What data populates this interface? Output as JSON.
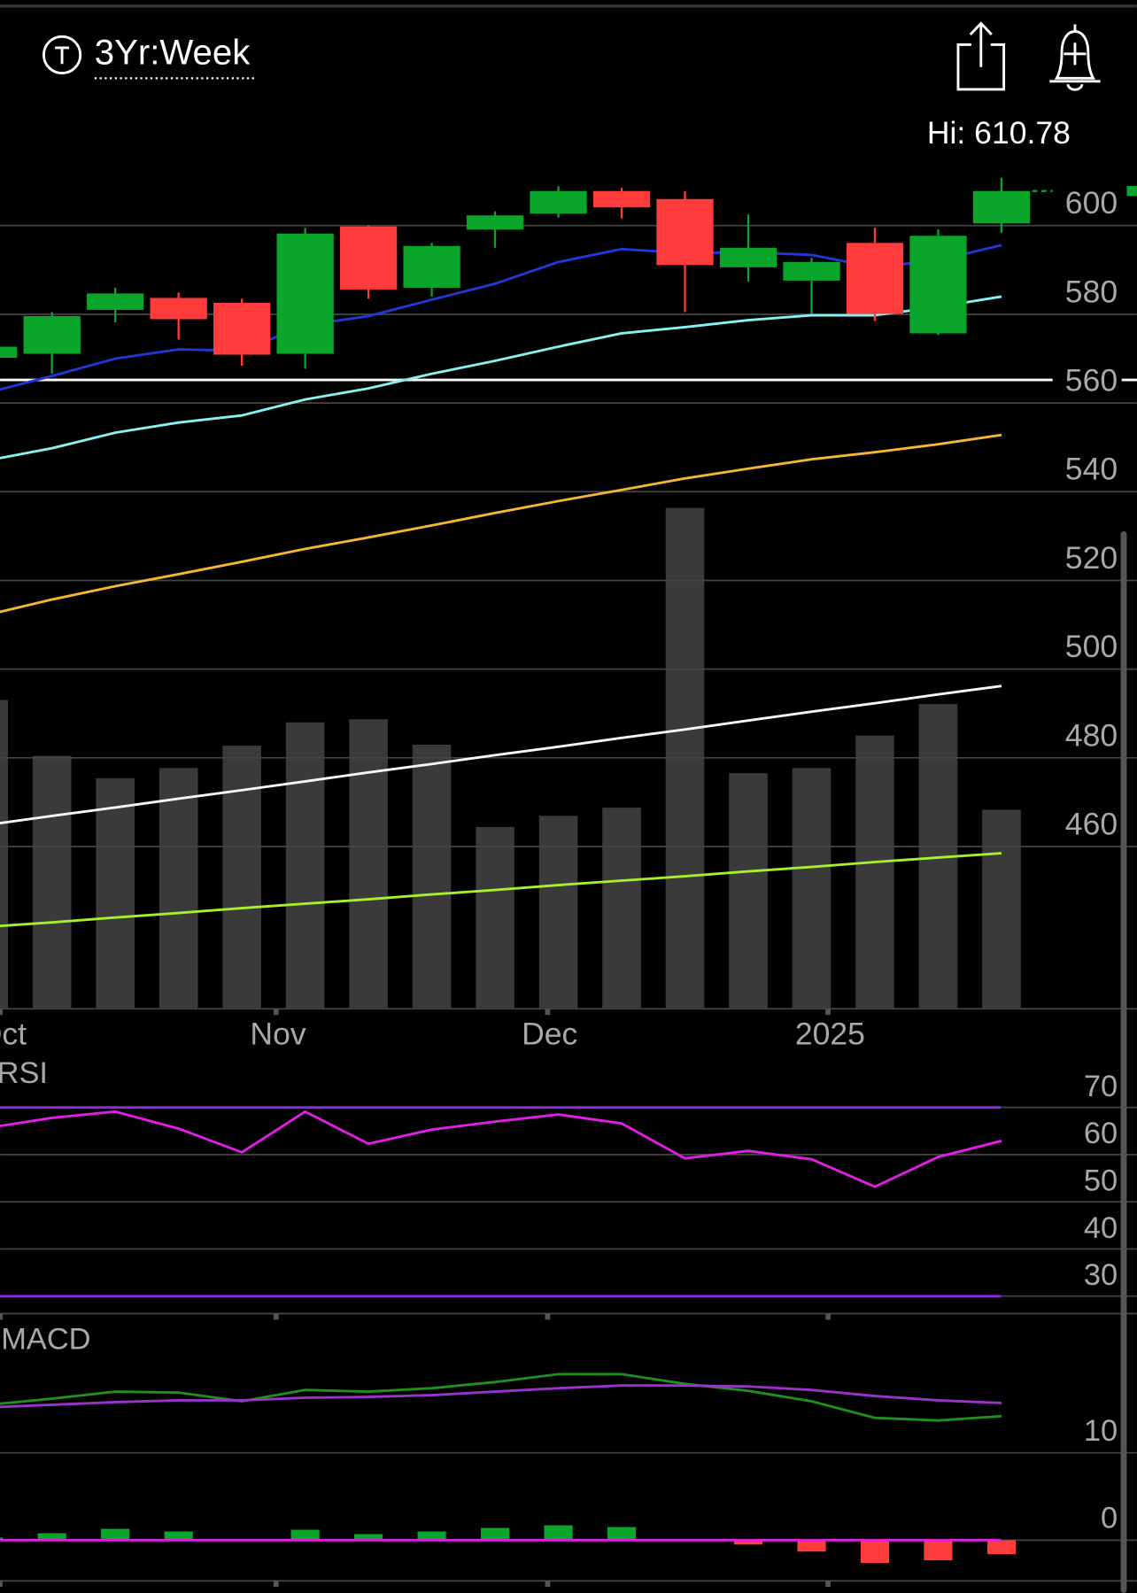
{
  "header": {
    "title": "3Yr:Week"
  },
  "chart_data": [
    {
      "type": "candlestick",
      "annotation": "Hi: 610.78",
      "x": [
        0,
        1,
        2,
        3,
        4,
        5,
        6,
        7,
        8,
        9,
        10,
        11,
        12,
        13,
        14,
        15,
        16
      ],
      "xlim": [
        0.18,
        18.14
      ],
      "xticks": [
        {
          "value": 0.18,
          "label": "Oct"
        },
        {
          "value": 4.54,
          "label": "Nov"
        },
        {
          "value": 8.83,
          "label": "Dec"
        },
        {
          "value": 13.26,
          "label": "2025"
        }
      ],
      "ylim": [
        423.4,
        618.8
      ],
      "yticks": [
        460,
        480,
        500,
        520,
        540,
        560,
        580,
        600
      ],
      "grid": true,
      "up_color": "#0aa52b",
      "down_color": "#ff3b3b",
      "open": [
        570.2,
        571.1,
        581.0,
        583.7,
        582.6,
        571.1,
        599.8,
        586.0,
        599.1,
        602.7,
        607.8,
        606.0,
        590.6,
        587.6,
        596.1,
        575.7,
        600.5
      ],
      "high": [
        573.2,
        580.5,
        586.0,
        584.9,
        583.5,
        599.5,
        600.0,
        596.1,
        603.2,
        608.9,
        608.5,
        607.8,
        602.5,
        592.7,
        599.5,
        599.1,
        610.78
      ],
      "low": [
        569.8,
        566.6,
        578.2,
        574.3,
        568.4,
        567.7,
        583.5,
        584.0,
        595.0,
        601.8,
        601.6,
        580.5,
        587.4,
        580.1,
        578.5,
        575.3,
        598.4
      ],
      "close": [
        572.7,
        579.6,
        584.7,
        578.9,
        570.9,
        598.2,
        585.6,
        595.4,
        602.3,
        607.8,
        604.1,
        591.1,
        595.0,
        591.8,
        580.1,
        597.7,
        607.8
      ],
      "lines": [
        {
          "color": "#2436d6",
          "values": [
            562.4,
            566.1,
            570.0,
            572.1,
            571.8,
            577.5,
            579.6,
            583.3,
            586.9,
            591.8,
            594.7,
            593.8,
            594.0,
            593.4,
            590.6,
            592.2,
            595.6
          ]
        },
        {
          "color": "#86f2f2",
          "values": [
            547.1,
            549.8,
            553.3,
            555.6,
            557.2,
            560.8,
            563.3,
            566.6,
            569.5,
            572.7,
            575.7,
            577.1,
            578.7,
            579.8,
            579.8,
            581.7,
            584.0
          ]
        },
        {
          "color": "#f5b731",
          "values": [
            512.3,
            515.7,
            518.7,
            521.4,
            524.2,
            527.1,
            529.7,
            532.4,
            535.2,
            537.9,
            540.4,
            543.0,
            545.2,
            547.3,
            548.9,
            550.7,
            552.8
          ]
        },
        {
          "color": "#f2f7f7",
          "values": [
            464.9,
            466.9,
            468.8,
            470.8,
            472.7,
            474.7,
            476.7,
            478.6,
            480.6,
            482.5,
            484.5,
            486.4,
            488.4,
            490.4,
            492.3,
            494.3,
            496.2
          ]
        },
        {
          "color": "#a8f02c",
          "values": [
            441.9,
            442.9,
            444.0,
            445.0,
            446.1,
            447.1,
            448.1,
            449.2,
            450.2,
            451.3,
            452.3,
            453.3,
            454.4,
            455.4,
            456.5,
            457.5,
            458.5
          ]
        }
      ],
      "reference_line": 565.2,
      "volume": {
        "color": "#3a3a3a",
        "axis": "y2",
        "values": [
          304,
          249,
          227,
          237,
          259,
          282,
          285,
          260,
          179,
          190,
          198,
          493,
          232,
          237,
          269,
          300,
          196
        ]
      },
      "y2lim": [
        0,
        853
      ]
    },
    {
      "type": "line",
      "title": "RSI",
      "x": [
        0,
        1,
        2,
        3,
        4,
        5,
        6,
        7,
        8,
        9,
        10,
        11,
        12,
        13,
        14,
        15,
        16
      ],
      "xlim": [
        0.18,
        18.14
      ],
      "ylim": [
        26.3,
        79.7
      ],
      "yticks": [
        30,
        40,
        50,
        60,
        70
      ],
      "grid": true,
      "levels": [
        70,
        30
      ],
      "level_color": "#8a2be2",
      "series": [
        {
          "color": "#e21ee6",
          "values": [
            65.7,
            67.8,
            69.1,
            65.5,
            60.5,
            69.1,
            62.3,
            65.3,
            67.0,
            68.5,
            66.6,
            59.2,
            60.8,
            59.0,
            53.2,
            59.5,
            62.9
          ]
        }
      ]
    },
    {
      "type": "macd",
      "title": "MACD",
      "x": [
        0,
        1,
        2,
        3,
        4,
        5,
        6,
        7,
        8,
        9,
        10,
        11,
        12,
        13,
        14,
        15,
        16
      ],
      "xlim": [
        0.18,
        18.14
      ],
      "ylim": [
        -4.65,
        25.12
      ],
      "yticks": [
        0,
        10
      ],
      "grid": true,
      "levels": [
        0
      ],
      "level_color": "#e020e0",
      "up_color": "#0aa52b",
      "down_color": "#ff3b3b",
      "series": [
        {
          "color": "#1f8f1f",
          "values": [
            15.5,
            16.2,
            17.0,
            16.9,
            15.9,
            17.2,
            17.0,
            17.4,
            18.1,
            19.0,
            19.0,
            17.9,
            17.1,
            15.9,
            14.0,
            13.7,
            14.2
          ]
        },
        {
          "color": "#9933cc",
          "values": [
            15.2,
            15.5,
            15.8,
            16.0,
            16.0,
            16.3,
            16.4,
            16.6,
            17.0,
            17.4,
            17.7,
            17.7,
            17.6,
            17.2,
            16.5,
            16.0,
            15.7
          ]
        }
      ],
      "histogram": [
        0.3,
        0.8,
        1.3,
        1.0,
        0.0,
        1.2,
        0.7,
        1.0,
        1.4,
        1.7,
        1.5,
        0.1,
        -0.5,
        -1.3,
        -2.6,
        -2.3,
        -1.6
      ]
    }
  ]
}
